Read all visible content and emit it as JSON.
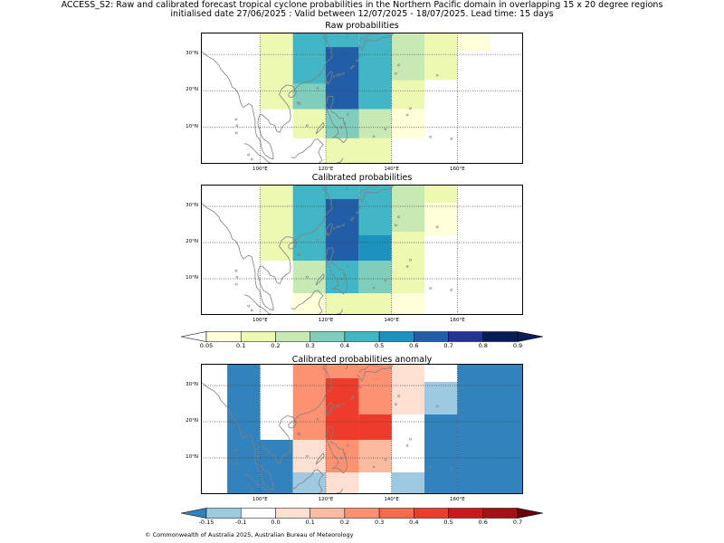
{
  "header": {
    "line1": "ACCESS_S2: Raw and calibrated forecast tropical cyclone probabilities in the Northern Pacific domain in overlapping 15 x 20 degree regions",
    "line2": "initialised date 27/06/2025 :  Valid between 12/07/2025 - 18/07/2025. Lead time: 15 days"
  },
  "panels": [
    {
      "title": "Raw probabilities",
      "cells": [
        {
          "lon0": 110,
          "lon1": 130,
          "lat0": 20,
          "lat1": 36,
          "color": "#42b6c4"
        },
        {
          "lon0": 130,
          "lon1": 150,
          "lat0": 20,
          "lat1": 36,
          "color": "#42b6c4"
        },
        {
          "lon0": 100,
          "lon1": 110,
          "lat0": 15,
          "lat1": 36,
          "color": "#edf8b1"
        },
        {
          "lon0": 110,
          "lon1": 120,
          "lat0": 15,
          "lat1": 36,
          "color": "#42b6c4"
        },
        {
          "lon0": 140,
          "lon1": 150,
          "lat0": 23,
          "lat1": 36,
          "color": "#c7e9b4"
        },
        {
          "lon0": 150,
          "lon1": 160,
          "lat0": 23,
          "lat1": 36,
          "color": "#edf8b1"
        },
        {
          "lon0": 160,
          "lon1": 170,
          "lat0": 31,
          "lat1": 36,
          "color": "#ffffd9"
        },
        {
          "lon0": 120,
          "lon1": 130,
          "lat0": 5,
          "lat1": 32,
          "color": "#225ea8"
        },
        {
          "lon0": 110,
          "lon1": 120,
          "lat0": 15,
          "lat1": 22,
          "color": "#7fcdbb"
        },
        {
          "lon0": 130,
          "lon1": 140,
          "lat0": 15,
          "lat1": 32,
          "color": "#42b6c4"
        },
        {
          "lon0": 140,
          "lon1": 150,
          "lat0": 15,
          "lat1": 23,
          "color": "#edf8b1"
        },
        {
          "lon0": 110,
          "lon1": 120,
          "lat0": 7,
          "lat1": 15,
          "color": "#edf8b1"
        },
        {
          "lon0": 130,
          "lon1": 140,
          "lat0": 7,
          "lat1": 15,
          "color": "#c7e9b4"
        },
        {
          "lon0": 140,
          "lon1": 150,
          "lat0": 7,
          "lat1": 15,
          "color": "#ffffd9"
        },
        {
          "lon0": 120,
          "lon1": 130,
          "lat0": 5,
          "lat1": 15,
          "color": "#7fcdbb"
        },
        {
          "lon0": 120,
          "lon1": 140,
          "lat0": 0,
          "lat1": 7,
          "color": "#edf8b1"
        }
      ]
    },
    {
      "title": "Calibrated probabilities",
      "cells": [
        {
          "lon0": 110,
          "lon1": 130,
          "lat0": 20,
          "lat1": 36,
          "color": "#42b6c4"
        },
        {
          "lon0": 130,
          "lon1": 150,
          "lat0": 20,
          "lat1": 36,
          "color": "#42b6c4"
        },
        {
          "lon0": 100,
          "lon1": 110,
          "lat0": 15,
          "lat1": 36,
          "color": "#edf8b1"
        },
        {
          "lon0": 110,
          "lon1": 120,
          "lat0": 15,
          "lat1": 36,
          "color": "#42b6c4"
        },
        {
          "lon0": 140,
          "lon1": 150,
          "lat0": 23,
          "lat1": 36,
          "color": "#c7e9b4"
        },
        {
          "lon0": 150,
          "lon1": 160,
          "lat0": 31,
          "lat1": 36,
          "color": "#edf8b1"
        },
        {
          "lon0": 150,
          "lon1": 160,
          "lat0": 22,
          "lat1": 31,
          "color": "#ffffd9"
        },
        {
          "lon0": 120,
          "lon1": 130,
          "lat0": 15,
          "lat1": 32,
          "color": "#225ea8"
        },
        {
          "lon0": 130,
          "lon1": 140,
          "lat0": 15,
          "lat1": 22,
          "color": "#1d91c0"
        },
        {
          "lon0": 140,
          "lon1": 150,
          "lat0": 6,
          "lat1": 23,
          "color": "#edf8b1"
        },
        {
          "lon0": 110,
          "lon1": 120,
          "lat0": 15,
          "lat1": 22,
          "color": "#42b6c4"
        },
        {
          "lon0": 110,
          "lon1": 120,
          "lat0": 6,
          "lat1": 15,
          "color": "#c7e9b4"
        },
        {
          "lon0": 120,
          "lon1": 130,
          "lat0": 6,
          "lat1": 15,
          "color": "#42b6c4"
        },
        {
          "lon0": 130,
          "lon1": 140,
          "lat0": 6,
          "lat1": 15,
          "color": "#7fcdbb"
        },
        {
          "lon0": 110,
          "lon1": 150,
          "lat0": 0,
          "lat1": 6,
          "color": "#ffffd9"
        },
        {
          "lon0": 120,
          "lon1": 140,
          "lat0": 0,
          "lat1": 6,
          "color": "#edf8b1"
        }
      ]
    },
    {
      "title": "Calibrated probabilities anomaly",
      "cells": [
        {
          "lon0": 90,
          "lon1": 100,
          "lat0": 0,
          "lat1": 36,
          "color": "#3182bd"
        },
        {
          "lon0": 100,
          "lon1": 110,
          "lat0": 0,
          "lat1": 15,
          "color": "#3182bd"
        },
        {
          "lon0": 150,
          "lon1": 160,
          "lat0": 0,
          "lat1": 22,
          "color": "#3182bd"
        },
        {
          "lon0": 160,
          "lon1": 180,
          "lat0": 0,
          "lat1": 36,
          "color": "#3182bd"
        },
        {
          "lon0": 110,
          "lon1": 140,
          "lat0": 15,
          "lat1": 36,
          "color": "#fc9272"
        },
        {
          "lon0": 130,
          "lon1": 150,
          "lat0": 6,
          "lat1": 36,
          "color": "#fc9272"
        },
        {
          "lon0": 140,
          "lon1": 150,
          "lat0": 22,
          "lat1": 36,
          "color": "#fee0d2"
        },
        {
          "lon0": 150,
          "lon1": 160,
          "lat0": 31,
          "lat1": 36,
          "color": "#ffffff"
        },
        {
          "lon0": 150,
          "lon1": 160,
          "lat0": 22,
          "lat1": 31,
          "color": "#9ecae1"
        },
        {
          "lon0": 140,
          "lon1": 150,
          "lat0": 6,
          "lat1": 22,
          "color": "#ffffff"
        },
        {
          "lon0": 140,
          "lon1": 150,
          "lat0": 0,
          "lat1": 6,
          "color": "#9ecae1"
        },
        {
          "lon0": 110,
          "lon1": 120,
          "lat0": 6,
          "lat1": 15,
          "color": "#fee0d2"
        },
        {
          "lon0": 110,
          "lon1": 120,
          "lat0": 0,
          "lat1": 6,
          "color": "#9ecae1"
        },
        {
          "lon0": 120,
          "lon1": 130,
          "lat0": 6,
          "lat1": 32,
          "color": "#ef3b2c"
        },
        {
          "lon0": 130,
          "lon1": 140,
          "lat0": 15,
          "lat1": 22,
          "color": "#ef3b2c"
        },
        {
          "lon0": 120,
          "lon1": 130,
          "lat0": 6,
          "lat1": 15,
          "color": "#fc9272"
        },
        {
          "lon0": 130,
          "lon1": 140,
          "lat0": 6,
          "lat1": 15,
          "color": "#fcbba1"
        },
        {
          "lon0": 120,
          "lon1": 130,
          "lat0": 0,
          "lat1": 6,
          "color": "#fee0d2"
        }
      ]
    }
  ],
  "map_axes": {
    "lon_ticks": [
      {
        "value": 100,
        "label": "100°E"
      },
      {
        "value": 120,
        "label": "120°E"
      },
      {
        "value": 140,
        "label": "140°E"
      },
      {
        "value": 160,
        "label": "160°E"
      }
    ],
    "lat_ticks": [
      {
        "value": 10,
        "label": "10°N"
      },
      {
        "value": 20,
        "label": "20°N"
      },
      {
        "value": 30,
        "label": "30°N"
      }
    ],
    "lon_range": [
      82,
      180
    ],
    "lat_range": [
      0,
      36
    ]
  },
  "colorbar_prob": {
    "ticks": [
      "0.05",
      "0.1",
      "0.2",
      "0.3",
      "0.4",
      "0.5",
      "0.6",
      "0.7",
      "0.8",
      "0.9"
    ],
    "under_color": "#ffffff",
    "colors": [
      "#ffffd9",
      "#edf8b1",
      "#c7e9b4",
      "#7fcdbb",
      "#42b6c4",
      "#1d91c0",
      "#225ea8",
      "#253494",
      "#081d58"
    ],
    "over_color": "#081d58"
  },
  "colorbar_anom": {
    "ticks": [
      "-0.15",
      "-0.1",
      "0.0",
      "0.1",
      "0.2",
      "0.3",
      "0.4",
      "0.5",
      "0.6",
      "0.7"
    ],
    "under_color": "#3182bd",
    "colors": [
      "#9ecae1",
      "#ffffff",
      "#fee0d2",
      "#fcbba1",
      "#fc9272",
      "#fb6a4a",
      "#ef3b2c",
      "#cb181d",
      "#a50f15"
    ],
    "over_color": "#67000d"
  },
  "footer": "© Commonwealth of Australia 2025, Australian Bureau of Meteorology"
}
